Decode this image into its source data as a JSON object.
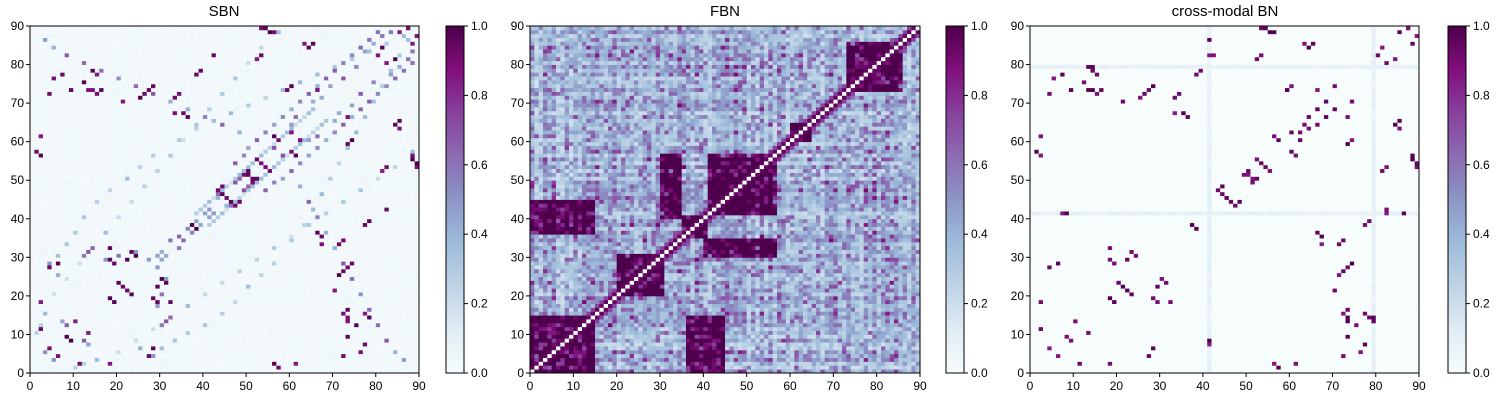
{
  "chart_data": [
    {
      "type": "heatmap",
      "title": "SBN",
      "xlabel": "",
      "ylabel": "",
      "xlim": [
        0,
        90
      ],
      "ylim": [
        0,
        90
      ],
      "xticks": [
        "0",
        "10",
        "20",
        "30",
        "40",
        "50",
        "60",
        "70",
        "80",
        "90"
      ],
      "yticks": [
        "0",
        "10",
        "20",
        "30",
        "40",
        "50",
        "60",
        "70",
        "80",
        "90"
      ],
      "grid_size": 90,
      "value_range": [
        0,
        1
      ],
      "background_level": 0.02,
      "colorbar_ticks": [
        "0.0",
        "0.2",
        "0.4",
        "0.6",
        "0.8",
        "1.0"
      ],
      "strong_cells": [
        [
          2,
          18
        ],
        [
          5,
          76
        ],
        [
          7,
          77
        ],
        [
          4,
          72
        ],
        [
          9,
          73
        ],
        [
          14,
          73
        ],
        [
          15,
          72
        ],
        [
          16,
          73
        ],
        [
          18,
          29
        ],
        [
          19,
          28
        ],
        [
          21,
          70
        ],
        [
          25,
          71
        ],
        [
          26,
          72
        ],
        [
          30,
          24
        ],
        [
          31,
          23
        ],
        [
          29,
          22
        ],
        [
          32,
          18
        ],
        [
          18,
          19
        ],
        [
          19,
          18
        ],
        [
          22,
          21
        ],
        [
          23,
          20
        ],
        [
          33,
          67
        ],
        [
          35,
          67
        ],
        [
          36,
          66
        ],
        [
          37,
          38
        ],
        [
          38,
          77
        ],
        [
          39,
          78
        ],
        [
          42,
          82
        ],
        [
          44,
          48
        ],
        [
          45,
          45
        ],
        [
          46,
          44
        ],
        [
          47,
          43
        ],
        [
          48,
          44
        ],
        [
          49,
          51
        ],
        [
          50,
          52
        ],
        [
          51,
          50
        ],
        [
          52,
          55
        ],
        [
          53,
          54
        ],
        [
          53,
          89
        ],
        [
          55,
          88
        ],
        [
          56,
          2
        ],
        [
          57,
          1
        ],
        [
          59,
          73
        ],
        [
          60,
          74
        ],
        [
          60,
          57
        ],
        [
          61,
          56
        ],
        [
          62,
          60
        ],
        [
          63,
          85
        ],
        [
          64,
          84
        ],
        [
          66,
          73
        ],
        [
          71,
          33
        ],
        [
          72,
          34
        ],
        [
          73,
          27
        ],
        [
          74,
          28
        ],
        [
          73,
          13
        ],
        [
          75,
          12
        ],
        [
          77,
          15
        ],
        [
          78,
          14
        ],
        [
          81,
          52
        ],
        [
          82,
          53
        ],
        [
          80,
          82
        ],
        [
          84,
          81
        ],
        [
          84,
          64
        ],
        [
          85,
          65
        ],
        [
          85,
          88
        ],
        [
          87,
          89
        ],
        [
          88,
          56
        ],
        [
          89,
          54
        ],
        [
          1,
          57
        ],
        [
          2,
          61
        ],
        [
          6,
          4
        ],
        [
          10,
          13
        ],
        [
          8,
          9
        ],
        [
          11,
          2
        ],
        [
          27,
          4
        ],
        [
          28,
          6
        ]
      ],
      "medium_cells": [
        [
          3,
          5
        ],
        [
          4,
          28
        ],
        [
          6,
          25
        ],
        [
          12,
          8
        ],
        [
          13,
          7
        ],
        [
          17,
          29
        ],
        [
          20,
          30
        ],
        [
          24,
          31
        ],
        [
          27,
          29
        ],
        [
          30,
          29
        ],
        [
          31,
          30
        ],
        [
          32,
          34
        ],
        [
          34,
          35
        ],
        [
          36,
          37
        ],
        [
          38,
          39
        ],
        [
          40,
          41
        ],
        [
          41,
          42
        ],
        [
          43,
          46
        ],
        [
          45,
          43
        ],
        [
          47,
          49
        ],
        [
          50,
          48
        ],
        [
          54,
          47
        ],
        [
          56,
          49
        ],
        [
          58,
          50
        ],
        [
          60,
          52
        ],
        [
          62,
          54
        ],
        [
          64,
          56
        ],
        [
          66,
          58
        ],
        [
          68,
          60
        ],
        [
          70,
          62
        ],
        [
          72,
          64
        ],
        [
          74,
          66
        ],
        [
          76,
          68
        ],
        [
          78,
          70
        ],
        [
          80,
          72
        ],
        [
          82,
          74
        ],
        [
          84,
          76
        ],
        [
          86,
          78
        ],
        [
          88,
          80
        ],
        [
          3,
          86
        ],
        [
          5,
          84
        ],
        [
          8,
          82
        ],
        [
          12,
          80
        ],
        [
          16,
          78
        ],
        [
          20,
          76
        ],
        [
          24,
          74
        ],
        [
          28,
          72
        ],
        [
          32,
          70
        ],
        [
          36,
          68
        ],
        [
          40,
          66
        ],
        [
          44,
          64
        ],
        [
          48,
          62
        ],
        [
          52,
          60
        ],
        [
          56,
          58
        ],
        [
          30,
          12
        ],
        [
          31,
          13
        ],
        [
          32,
          14
        ],
        [
          60,
          64
        ],
        [
          61,
          66
        ],
        [
          65,
          70
        ],
        [
          67,
          71
        ],
        [
          69,
          74
        ],
        [
          72,
          76
        ],
        [
          75,
          79
        ],
        [
          77,
          83
        ],
        [
          79,
          85
        ],
        [
          81,
          87
        ],
        [
          83,
          88
        ]
      ],
      "light_cells": [
        [
          1,
          10
        ],
        [
          2,
          12
        ],
        [
          3,
          15
        ],
        [
          6,
          30
        ],
        [
          8,
          33
        ],
        [
          10,
          36
        ],
        [
          12,
          40
        ],
        [
          15,
          44
        ],
        [
          18,
          47
        ],
        [
          22,
          50
        ],
        [
          25,
          53
        ],
        [
          28,
          56
        ],
        [
          34,
          60
        ],
        [
          38,
          63
        ],
        [
          42,
          65
        ],
        [
          46,
          67
        ],
        [
          50,
          69
        ],
        [
          54,
          71
        ],
        [
          58,
          73
        ],
        [
          62,
          75
        ],
        [
          66,
          77
        ],
        [
          70,
          79
        ],
        [
          74,
          81
        ],
        [
          78,
          83
        ],
        [
          82,
          85
        ],
        [
          86,
          87
        ],
        [
          20,
          5
        ],
        [
          24,
          8
        ],
        [
          28,
          11
        ],
        [
          36,
          17
        ],
        [
          40,
          20
        ],
        [
          44,
          23
        ],
        [
          48,
          26
        ],
        [
          52,
          29
        ],
        [
          56,
          32
        ],
        [
          60,
          35
        ],
        [
          64,
          38
        ],
        [
          68,
          41
        ],
        [
          72,
          44
        ],
        [
          76,
          47
        ],
        [
          80,
          50
        ],
        [
          84,
          53
        ],
        [
          88,
          57
        ],
        [
          41,
          38
        ],
        [
          42,
          39
        ],
        [
          43,
          40
        ],
        [
          44,
          41
        ],
        [
          45,
          42
        ],
        [
          46,
          43
        ],
        [
          47,
          44
        ],
        [
          48,
          45
        ],
        [
          49,
          46
        ],
        [
          50,
          47
        ],
        [
          51,
          48
        ],
        [
          52,
          49
        ],
        [
          53,
          50
        ],
        [
          54,
          51
        ],
        [
          55,
          52
        ],
        [
          56,
          53
        ],
        [
          57,
          54
        ],
        [
          58,
          55
        ],
        [
          59,
          56
        ],
        [
          60,
          57
        ],
        [
          61,
          58
        ],
        [
          62,
          59
        ],
        [
          63,
          60
        ],
        [
          64,
          61
        ],
        [
          65,
          62
        ],
        [
          66,
          63
        ],
        [
          67,
          64
        ],
        [
          68,
          65
        ]
      ]
    },
    {
      "type": "heatmap",
      "title": "FBN",
      "xlabel": "",
      "ylabel": "",
      "xlim": [
        0,
        90
      ],
      "ylim": [
        0,
        90
      ],
      "xticks": [
        "0",
        "10",
        "20",
        "30",
        "40",
        "50",
        "60",
        "70",
        "80",
        "90"
      ],
      "yticks": [
        "0",
        "10",
        "20",
        "30",
        "40",
        "50",
        "60",
        "70",
        "80",
        "90"
      ],
      "grid_size": 90,
      "value_range": [
        0,
        1
      ],
      "background_level": 0.3,
      "diagonal": "zero-with-strong-neighbors",
      "strong_blocks": [
        [
          0,
          14,
          0,
          14
        ],
        [
          20,
          30,
          20,
          30
        ],
        [
          35,
          40,
          35,
          40
        ],
        [
          41,
          56,
          41,
          56
        ],
        [
          60,
          64,
          60,
          64
        ],
        [
          73,
          85,
          73,
          85
        ],
        [
          0,
          14,
          36,
          44
        ],
        [
          36,
          44,
          0,
          14
        ],
        [
          30,
          34,
          40,
          56
        ],
        [
          40,
          56,
          30,
          34
        ]
      ],
      "colorbar_ticks": [
        "0.0",
        "0.2",
        "0.4",
        "0.6",
        "0.8",
        "1.0"
      ]
    },
    {
      "type": "heatmap",
      "title": "cross-modal BN",
      "xlabel": "",
      "ylabel": "",
      "xlim": [
        0,
        90
      ],
      "ylim": [
        0,
        90
      ],
      "xticks": [
        "0",
        "10",
        "20",
        "30",
        "40",
        "50",
        "60",
        "70",
        "80",
        "90"
      ],
      "yticks": [
        "0",
        "10",
        "20",
        "30",
        "40",
        "50",
        "60",
        "70",
        "80",
        "90"
      ],
      "grid_size": 90,
      "value_range": [
        0,
        1
      ],
      "background_level": 0.0,
      "faint_lines": [
        41,
        79
      ],
      "strong_cells": [
        [
          2,
          18
        ],
        [
          5,
          76
        ],
        [
          7,
          77
        ],
        [
          4,
          72
        ],
        [
          9,
          73
        ],
        [
          14,
          73
        ],
        [
          15,
          72
        ],
        [
          16,
          73
        ],
        [
          18,
          29
        ],
        [
          19,
          28
        ],
        [
          21,
          70
        ],
        [
          25,
          71
        ],
        [
          26,
          72
        ],
        [
          30,
          24
        ],
        [
          31,
          23
        ],
        [
          29,
          22
        ],
        [
          32,
          18
        ],
        [
          18,
          19
        ],
        [
          19,
          18
        ],
        [
          22,
          21
        ],
        [
          23,
          20
        ],
        [
          33,
          67
        ],
        [
          35,
          67
        ],
        [
          36,
          66
        ],
        [
          37,
          38
        ],
        [
          38,
          77
        ],
        [
          39,
          78
        ],
        [
          42,
          82
        ],
        [
          44,
          48
        ],
        [
          45,
          45
        ],
        [
          46,
          44
        ],
        [
          47,
          43
        ],
        [
          48,
          44
        ],
        [
          49,
          51
        ],
        [
          50,
          52
        ],
        [
          51,
          50
        ],
        [
          52,
          55
        ],
        [
          53,
          54
        ],
        [
          53,
          89
        ],
        [
          55,
          88
        ],
        [
          56,
          2
        ],
        [
          57,
          1
        ],
        [
          59,
          73
        ],
        [
          60,
          74
        ],
        [
          60,
          57
        ],
        [
          61,
          56
        ],
        [
          62,
          60
        ],
        [
          63,
          85
        ],
        [
          64,
          84
        ],
        [
          66,
          73
        ],
        [
          71,
          33
        ],
        [
          72,
          34
        ],
        [
          73,
          27
        ],
        [
          74,
          28
        ],
        [
          73,
          13
        ],
        [
          75,
          12
        ],
        [
          77,
          15
        ],
        [
          78,
          14
        ],
        [
          81,
          52
        ],
        [
          82,
          53
        ],
        [
          80,
          82
        ],
        [
          84,
          81
        ],
        [
          84,
          64
        ],
        [
          85,
          65
        ],
        [
          85,
          88
        ],
        [
          87,
          89
        ],
        [
          88,
          56
        ],
        [
          89,
          54
        ],
        [
          1,
          57
        ],
        [
          2,
          61
        ],
        [
          6,
          4
        ],
        [
          10,
          13
        ],
        [
          8,
          9
        ],
        [
          11,
          2
        ],
        [
          27,
          4
        ],
        [
          28,
          6
        ],
        [
          41,
          82
        ],
        [
          41,
          86
        ],
        [
          41,
          7
        ],
        [
          41,
          8
        ],
        [
          79,
          13
        ],
        [
          79,
          14
        ],
        [
          62,
          62
        ],
        [
          64,
          63
        ],
        [
          66,
          64
        ],
        [
          68,
          66
        ],
        [
          70,
          68
        ],
        [
          74,
          70
        ]
      ],
      "colorbar_ticks": [
        "0.0",
        "0.2",
        "0.4",
        "0.6",
        "0.8",
        "1.0"
      ]
    }
  ]
}
